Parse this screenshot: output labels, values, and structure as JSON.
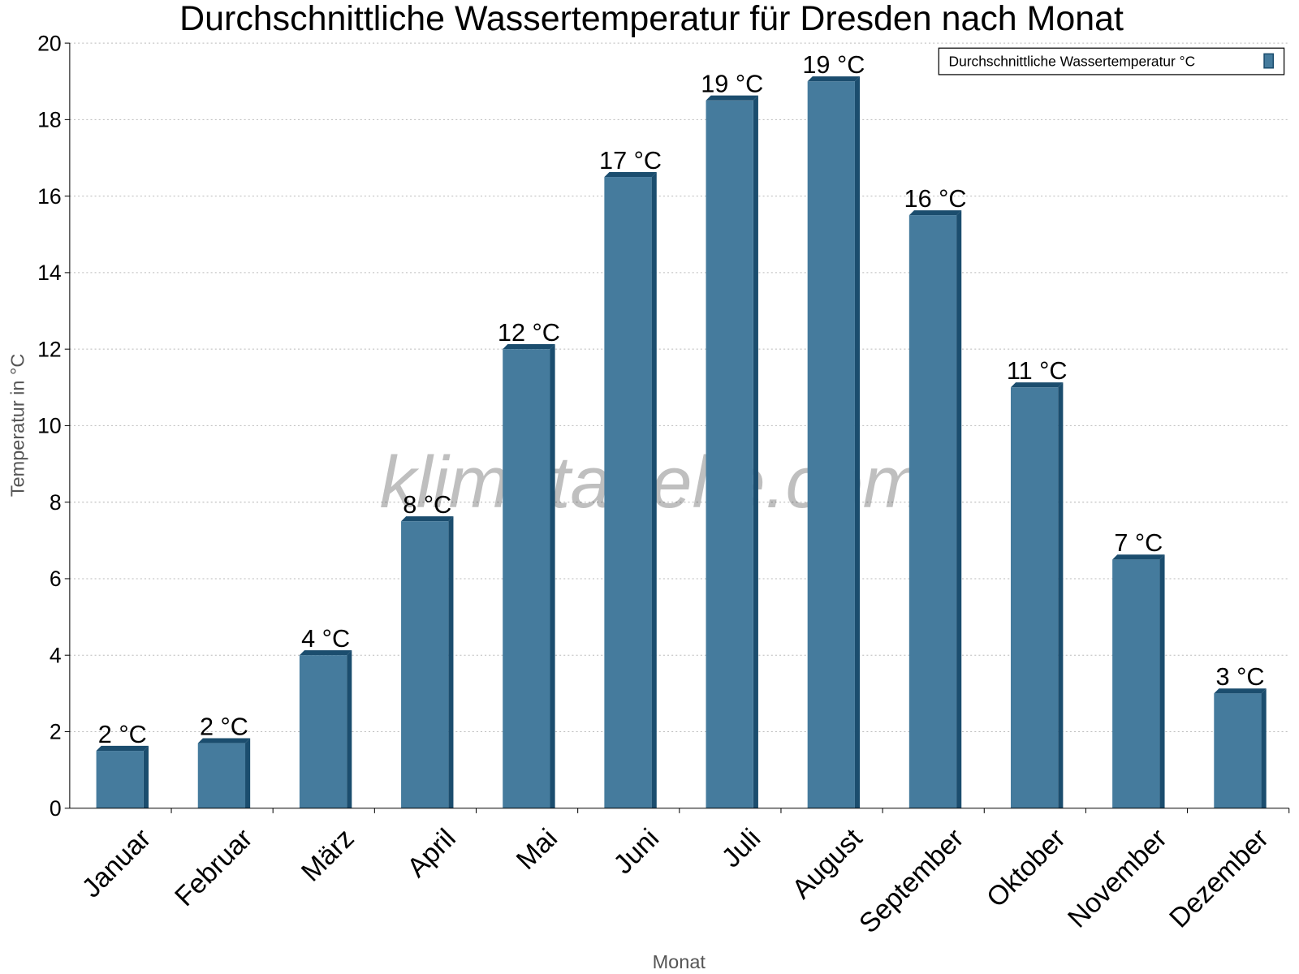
{
  "chart_data": {
    "type": "bar",
    "title": "Durchschnittliche Wassertemperatur für Dresden nach Monat",
    "xlabel": "Monat",
    "ylabel": "Temperatur in °C",
    "ylim": [
      0,
      20
    ],
    "yticks": [
      "0",
      "2",
      "4",
      "6",
      "8",
      "10",
      "12",
      "14",
      "16",
      "18",
      "20"
    ],
    "grid": true,
    "legend_position": "top-right",
    "categories": [
      "Januar",
      "Februar",
      "März",
      "April",
      "Mai",
      "Juni",
      "Juli",
      "August",
      "September",
      "Oktober",
      "November",
      "Dezember"
    ],
    "series": [
      {
        "name": "Durchschnittliche Wassertemperatur °C",
        "values": [
          1.5,
          1.7,
          4.0,
          7.5,
          12.0,
          16.5,
          18.5,
          19.0,
          15.5,
          11.0,
          6.5,
          3.0
        ],
        "data_labels": [
          "2 °C",
          "2 °C",
          "4 °C",
          "8 °C",
          "12 °C",
          "17 °C",
          "19 °C",
          "19 °C",
          "16 °C",
          "11 °C",
          "7 °C",
          "3 °C"
        ],
        "color": "#457b9d",
        "side_color": "#1b4d6e"
      }
    ],
    "watermark": "klimatabelle.com"
  }
}
